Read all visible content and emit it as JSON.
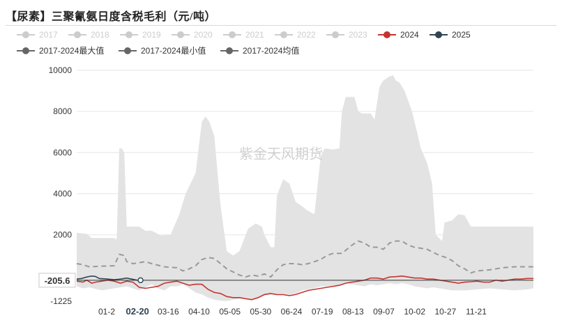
{
  "title": "【尿素】三聚氰氨日度含税毛利（元/吨）",
  "watermark": "紫金天风期货",
  "cursor_label": "-205.6",
  "cursor_x_label": "02-20",
  "chart_data": {
    "type": "area",
    "ylim": [
      -1225,
      10000
    ],
    "yticks": [
      10000,
      8000,
      6000,
      4000,
      2000
    ],
    "y_bottom_label": "-1225",
    "cursor_value": -205.6,
    "xticks": [
      "01-2",
      "02-20",
      "03-16",
      "04-10",
      "05-05",
      "05-30",
      "06-24",
      "07-19",
      "08-13",
      "09-07",
      "10-02",
      "10-27",
      "11-21"
    ],
    "legend": [
      {
        "name": "2017",
        "color": "#cccccc",
        "style": "inactive"
      },
      {
        "name": "2018",
        "color": "#cccccc",
        "style": "inactive"
      },
      {
        "name": "2019",
        "color": "#cccccc",
        "style": "inactive"
      },
      {
        "name": "2020",
        "color": "#cccccc",
        "style": "inactive"
      },
      {
        "name": "2021",
        "color": "#cccccc",
        "style": "inactive"
      },
      {
        "name": "2022",
        "color": "#cccccc",
        "style": "inactive"
      },
      {
        "name": "2023",
        "color": "#cccccc",
        "style": "inactive"
      },
      {
        "name": "2024",
        "color": "#c23531",
        "style": "line"
      },
      {
        "name": "2025",
        "color": "#2f4554",
        "style": "line"
      },
      {
        "name": "2017-2024最大值",
        "color": "#666666",
        "style": "line"
      },
      {
        "name": "2017-2024最小值",
        "color": "#666666",
        "style": "line"
      },
      {
        "name": "2017-2024均值",
        "color": "#666666",
        "style": "line"
      }
    ],
    "x_range": [
      0,
      365
    ],
    "band": {
      "name": "2017-2024最大值/最小值",
      "color": "#e3e3e3",
      "max": [
        [
          0,
          2100
        ],
        [
          8,
          2050
        ],
        [
          12,
          1850
        ],
        [
          30,
          1850
        ],
        [
          31,
          1800
        ],
        [
          32,
          1800
        ],
        [
          34,
          6200
        ],
        [
          36,
          6200
        ],
        [
          38,
          6000
        ],
        [
          40,
          2400
        ],
        [
          50,
          2400
        ],
        [
          55,
          2200
        ],
        [
          60,
          2200
        ],
        [
          68,
          1950
        ],
        [
          70,
          2000
        ],
        [
          75,
          2000
        ],
        [
          82,
          3000
        ],
        [
          87,
          4000
        ],
        [
          95,
          5000
        ],
        [
          100,
          7500
        ],
        [
          103,
          7750
        ],
        [
          106,
          7500
        ],
        [
          110,
          6800
        ],
        [
          113,
          4700
        ],
        [
          115,
          3400
        ],
        [
          120,
          1200
        ],
        [
          125,
          1000
        ],
        [
          130,
          1200
        ],
        [
          137,
          2300
        ],
        [
          143,
          2550
        ],
        [
          148,
          2400
        ],
        [
          150,
          2000
        ],
        [
          155,
          1400
        ],
        [
          158,
          1400
        ],
        [
          160,
          3900
        ],
        [
          165,
          4700
        ],
        [
          170,
          4500
        ],
        [
          175,
          3600
        ],
        [
          180,
          3400
        ],
        [
          184,
          3200
        ],
        [
          190,
          3000
        ],
        [
          195,
          5800
        ],
        [
          198,
          6200
        ],
        [
          205,
          6150
        ],
        [
          210,
          6200
        ],
        [
          212,
          8000
        ],
        [
          215,
          8700
        ],
        [
          222,
          8700
        ],
        [
          225,
          8000
        ],
        [
          228,
          7900
        ],
        [
          235,
          7900
        ],
        [
          238,
          7600
        ],
        [
          242,
          9200
        ],
        [
          245,
          9500
        ],
        [
          250,
          9700
        ],
        [
          253,
          9750
        ],
        [
          255,
          9500
        ],
        [
          258,
          9400
        ],
        [
          262,
          9000
        ],
        [
          268,
          8000
        ],
        [
          272,
          7000
        ],
        [
          275,
          6200
        ],
        [
          280,
          5500
        ],
        [
          284,
          4500
        ],
        [
          287,
          2000
        ],
        [
          292,
          1700
        ],
        [
          294,
          2600
        ],
        [
          300,
          2700
        ],
        [
          305,
          3000
        ],
        [
          310,
          2950
        ],
        [
          315,
          2400
        ],
        [
          320,
          2400
        ],
        [
          365,
          2400
        ]
      ],
      "min": [
        [
          0,
          -500
        ],
        [
          5,
          -600
        ],
        [
          10,
          -550
        ],
        [
          20,
          -700
        ],
        [
          30,
          -600
        ],
        [
          40,
          -500
        ],
        [
          50,
          -700
        ],
        [
          55,
          -550
        ],
        [
          60,
          -400
        ],
        [
          65,
          -600
        ],
        [
          70,
          -700
        ],
        [
          75,
          -500
        ],
        [
          80,
          -500
        ],
        [
          85,
          -400
        ],
        [
          90,
          -600
        ],
        [
          95,
          -800
        ],
        [
          100,
          -900
        ],
        [
          105,
          -1050
        ],
        [
          110,
          -1150
        ],
        [
          115,
          -1200
        ],
        [
          120,
          -1220
        ],
        [
          125,
          -1150
        ],
        [
          130,
          -1100
        ],
        [
          135,
          -1050
        ],
        [
          140,
          -1150
        ],
        [
          145,
          -1100
        ],
        [
          150,
          -950
        ],
        [
          155,
          -900
        ],
        [
          160,
          -850
        ],
        [
          165,
          -850
        ],
        [
          170,
          -900
        ],
        [
          175,
          -850
        ],
        [
          180,
          -700
        ],
        [
          185,
          -650
        ],
        [
          190,
          -600
        ],
        [
          195,
          -500
        ],
        [
          200,
          -500
        ],
        [
          205,
          -450
        ],
        [
          210,
          -450
        ],
        [
          215,
          -350
        ],
        [
          220,
          -400
        ],
        [
          225,
          -450
        ],
        [
          230,
          -500
        ],
        [
          235,
          -400
        ],
        [
          240,
          -450
        ],
        [
          245,
          -400
        ],
        [
          250,
          -350
        ],
        [
          255,
          -400
        ],
        [
          260,
          -350
        ],
        [
          265,
          -400
        ],
        [
          270,
          -500
        ],
        [
          275,
          -550
        ],
        [
          280,
          -600
        ],
        [
          285,
          -550
        ],
        [
          290,
          -600
        ],
        [
          295,
          -650
        ],
        [
          300,
          -700
        ],
        [
          310,
          -700
        ],
        [
          320,
          -650
        ],
        [
          330,
          -600
        ],
        [
          340,
          -650
        ],
        [
          350,
          -700
        ],
        [
          360,
          -650
        ],
        [
          365,
          -600
        ]
      ]
    },
    "series": [
      {
        "name": "2017-2024均值",
        "color": "#999999",
        "dash": true,
        "points": [
          [
            0,
            600
          ],
          [
            5,
            550
          ],
          [
            10,
            450
          ],
          [
            20,
            480
          ],
          [
            30,
            500
          ],
          [
            34,
            1050
          ],
          [
            38,
            1000
          ],
          [
            40,
            700
          ],
          [
            45,
            600
          ],
          [
            55,
            700
          ],
          [
            60,
            600
          ],
          [
            70,
            450
          ],
          [
            80,
            400
          ],
          [
            85,
            250
          ],
          [
            90,
            350
          ],
          [
            95,
            500
          ],
          [
            100,
            800
          ],
          [
            105,
            900
          ],
          [
            110,
            850
          ],
          [
            115,
            600
          ],
          [
            120,
            350
          ],
          [
            125,
            200
          ],
          [
            130,
            50
          ],
          [
            135,
            -50
          ],
          [
            140,
            50
          ],
          [
            145,
            0
          ],
          [
            150,
            100
          ],
          [
            155,
            -50
          ],
          [
            160,
            300
          ],
          [
            165,
            550
          ],
          [
            170,
            600
          ],
          [
            175,
            600
          ],
          [
            180,
            550
          ],
          [
            185,
            600
          ],
          [
            195,
            800
          ],
          [
            200,
            1000
          ],
          [
            205,
            1100
          ],
          [
            212,
            1100
          ],
          [
            220,
            1500
          ],
          [
            225,
            1700
          ],
          [
            230,
            1600
          ],
          [
            235,
            1400
          ],
          [
            240,
            1400
          ],
          [
            245,
            1300
          ],
          [
            250,
            1600
          ],
          [
            255,
            1700
          ],
          [
            260,
            1700
          ],
          [
            265,
            1500
          ],
          [
            270,
            1400
          ],
          [
            280,
            1300
          ],
          [
            285,
            1150
          ],
          [
            290,
            1000
          ],
          [
            295,
            900
          ],
          [
            300,
            750
          ],
          [
            305,
            500
          ],
          [
            310,
            350
          ],
          [
            315,
            150
          ],
          [
            320,
            250
          ],
          [
            330,
            300
          ],
          [
            340,
            400
          ],
          [
            350,
            450
          ],
          [
            365,
            450
          ]
        ]
      },
      {
        "name": "2024",
        "color": "#c23531",
        "dash": false,
        "points": [
          [
            0,
            -250
          ],
          [
            5,
            -300
          ],
          [
            8,
            -200
          ],
          [
            12,
            -350
          ],
          [
            15,
            -300
          ],
          [
            20,
            -250
          ],
          [
            25,
            -200
          ],
          [
            30,
            -250
          ],
          [
            35,
            -350
          ],
          [
            40,
            -250
          ],
          [
            45,
            -300
          ],
          [
            50,
            -550
          ],
          [
            55,
            -600
          ],
          [
            60,
            -550
          ],
          [
            65,
            -500
          ],
          [
            70,
            -350
          ],
          [
            75,
            -300
          ],
          [
            80,
            -250
          ],
          [
            85,
            -350
          ],
          [
            90,
            -450
          ],
          [
            95,
            -400
          ],
          [
            100,
            -400
          ],
          [
            105,
            -650
          ],
          [
            110,
            -800
          ],
          [
            115,
            -850
          ],
          [
            120,
            -1000
          ],
          [
            125,
            -1050
          ],
          [
            130,
            -1050
          ],
          [
            135,
            -1100
          ],
          [
            140,
            -1150
          ],
          [
            145,
            -1050
          ],
          [
            150,
            -900
          ],
          [
            155,
            -850
          ],
          [
            160,
            -900
          ],
          [
            165,
            -900
          ],
          [
            170,
            -950
          ],
          [
            175,
            -900
          ],
          [
            180,
            -800
          ],
          [
            185,
            -700
          ],
          [
            190,
            -650
          ],
          [
            195,
            -600
          ],
          [
            200,
            -550
          ],
          [
            205,
            -500
          ],
          [
            210,
            -450
          ],
          [
            215,
            -350
          ],
          [
            220,
            -300
          ],
          [
            225,
            -250
          ],
          [
            230,
            -200
          ],
          [
            235,
            -100
          ],
          [
            240,
            -100
          ],
          [
            245,
            -150
          ],
          [
            250,
            -50
          ],
          [
            255,
            -30
          ],
          [
            260,
            0
          ],
          [
            265,
            -50
          ],
          [
            270,
            -100
          ],
          [
            275,
            -100
          ],
          [
            280,
            -150
          ],
          [
            285,
            -150
          ],
          [
            290,
            -200
          ],
          [
            295,
            -250
          ],
          [
            300,
            -300
          ],
          [
            305,
            -350
          ],
          [
            310,
            -300
          ],
          [
            315,
            -280
          ],
          [
            320,
            -250
          ],
          [
            325,
            -300
          ],
          [
            330,
            -300
          ],
          [
            335,
            -200
          ],
          [
            340,
            -250
          ],
          [
            345,
            -200
          ],
          [
            350,
            -150
          ],
          [
            355,
            -150
          ],
          [
            360,
            -120
          ],
          [
            365,
            -120
          ]
        ]
      },
      {
        "name": "2025",
        "color": "#2f4554",
        "dash": false,
        "points": [
          [
            0,
            -150
          ],
          [
            4,
            -120
          ],
          [
            8,
            -50
          ],
          [
            12,
            0
          ],
          [
            15,
            -20
          ],
          [
            18,
            -120
          ],
          [
            25,
            -150
          ],
          [
            30,
            -180
          ],
          [
            35,
            -150
          ],
          [
            40,
            -100
          ],
          [
            44,
            -150
          ],
          [
            48,
            -200
          ],
          [
            51,
            -206
          ]
        ]
      }
    ]
  }
}
